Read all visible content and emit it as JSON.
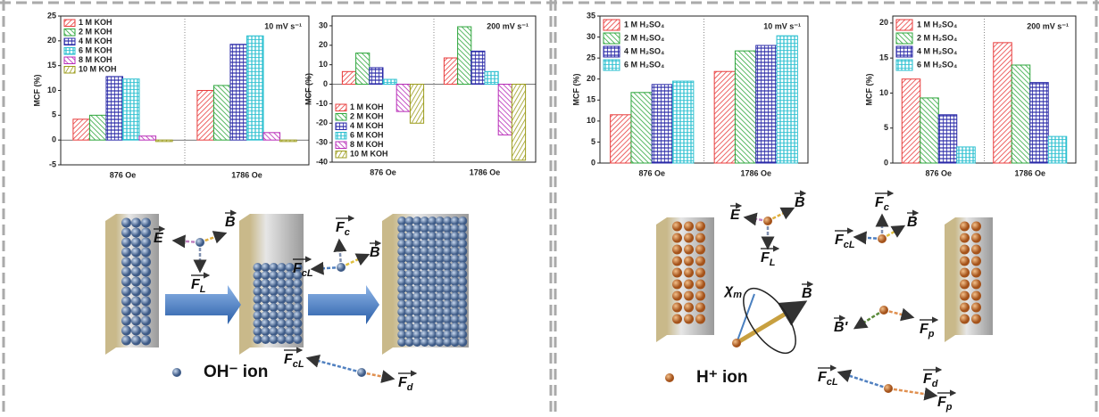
{
  "chart_data": [
    {
      "type": "bar",
      "title": "10 mV s⁻¹",
      "y_label": "MCF (%)",
      "categories": [
        "876 Oe",
        "1786 Oe"
      ],
      "ylim": [
        -5,
        25
      ],
      "yticks": [
        -5,
        0,
        5,
        10,
        15,
        20,
        25
      ],
      "legend": "upper left",
      "series": [
        {
          "name": "1 M KOH",
          "color": "#e83c3c",
          "values": [
            4.2,
            10
          ]
        },
        {
          "name": "2 M KOH",
          "color": "#2ea63c",
          "values": [
            5,
            11
          ]
        },
        {
          "name": "4 M KOH",
          "color": "#2a2aa8",
          "values": [
            12.8,
            19.3
          ]
        },
        {
          "name": "6 M KOH",
          "color": "#2cc0d0",
          "values": [
            12.3,
            21
          ]
        },
        {
          "name": "8 M KOH",
          "color": "#b82cb8",
          "values": [
            0.8,
            1.5
          ]
        },
        {
          "name": "10 M KOH",
          "color": "#9c9c1c",
          "values": [
            -0.3,
            -0.3
          ]
        }
      ]
    },
    {
      "type": "bar",
      "title": "200 mV s⁻¹",
      "y_label": "MCF (%)",
      "categories": [
        "876 Oe",
        "1786 Oe"
      ],
      "ylim": [
        -40,
        35
      ],
      "yticks": [
        -40,
        -30,
        -20,
        -10,
        0,
        10,
        20,
        30
      ],
      "legend": "lower left",
      "series": [
        {
          "name": "1 M KOH",
          "color": "#e83c3c",
          "values": [
            6.5,
            13.5
          ]
        },
        {
          "name": "2 M KOH",
          "color": "#2ea63c",
          "values": [
            16,
            29.5
          ]
        },
        {
          "name": "4 M KOH",
          "color": "#2a2aa8",
          "values": [
            8.5,
            17
          ]
        },
        {
          "name": "6 M KOH",
          "color": "#2cc0d0",
          "values": [
            2.5,
            6.5
          ]
        },
        {
          "name": "8 M KOH",
          "color": "#b82cb8",
          "values": [
            -14,
            -26
          ]
        },
        {
          "name": "10 M KOH",
          "color": "#9c9c1c",
          "values": [
            -20,
            -39
          ]
        }
      ]
    },
    {
      "type": "bar",
      "title": "10 mV s⁻¹",
      "y_label": "MCF (%)",
      "categories": [
        "876 Oe",
        "1786 Oe"
      ],
      "ylim": [
        0,
        35
      ],
      "yticks": [
        0,
        5,
        10,
        15,
        20,
        25,
        30,
        35
      ],
      "legend": "upper left",
      "series": [
        {
          "name": "1 M H₂SO₄",
          "color": "#e83c3c",
          "values": [
            11.5,
            21.8
          ]
        },
        {
          "name": "2 M H₂SO₄",
          "color": "#2ea63c",
          "values": [
            16.8,
            26.7
          ]
        },
        {
          "name": "4 M H₂SO₄",
          "color": "#2a2aa8",
          "values": [
            18.7,
            28
          ]
        },
        {
          "name": "6 M H₂SO₄",
          "color": "#2cc0d0",
          "values": [
            19.5,
            30.3
          ]
        }
      ]
    },
    {
      "type": "bar",
      "title": "200 mV s⁻¹",
      "y_label": "MCF (%)",
      "categories": [
        "876 Oe",
        "1786 Oe"
      ],
      "ylim": [
        0,
        21
      ],
      "yticks": [
        0,
        5,
        10,
        15,
        20
      ],
      "legend": "upper left",
      "series": [
        {
          "name": "1 M H₂SO₄",
          "color": "#e83c3c",
          "values": [
            12,
            17.2
          ]
        },
        {
          "name": "2 M H₂SO₄",
          "color": "#2ea63c",
          "values": [
            9.3,
            14
          ]
        },
        {
          "name": "4 M H₂SO₄",
          "color": "#2a2aa8",
          "values": [
            6.9,
            11.5
          ]
        },
        {
          "name": "6 M H₂SO₄",
          "color": "#2cc0d0",
          "values": [
            2.3,
            3.8
          ]
        }
      ]
    }
  ],
  "diagrams": [
    {
      "legend": "OH⁻ ion",
      "labels": [
        {
          "main": "E"
        },
        {
          "main": "B"
        },
        {
          "main": "F",
          "sub": "L"
        },
        {
          "main": "F",
          "sub": "c"
        },
        {
          "main": "F",
          "sub": "cL"
        },
        {
          "main": "B"
        },
        {
          "main": "F",
          "sub": "cL"
        },
        {
          "main": "F",
          "sub": "d"
        }
      ]
    },
    {
      "legend": "H⁺ ion",
      "labels": [
        {
          "main": "E"
        },
        {
          "main": "B"
        },
        {
          "main": "F",
          "sub": "L"
        },
        {
          "main": "F",
          "sub": "c"
        },
        {
          "main": "F",
          "sub": "cL"
        },
        {
          "main": "B"
        },
        {
          "main": "χ",
          "sub": "m"
        },
        {
          "main": "B"
        },
        {
          "main": "B'"
        },
        {
          "main": "F",
          "sub": "p"
        },
        {
          "main": "F",
          "sub": "cL"
        },
        {
          "main": "F",
          "sub": "d"
        },
        {
          "main": "F",
          "sub": "p"
        }
      ]
    }
  ]
}
